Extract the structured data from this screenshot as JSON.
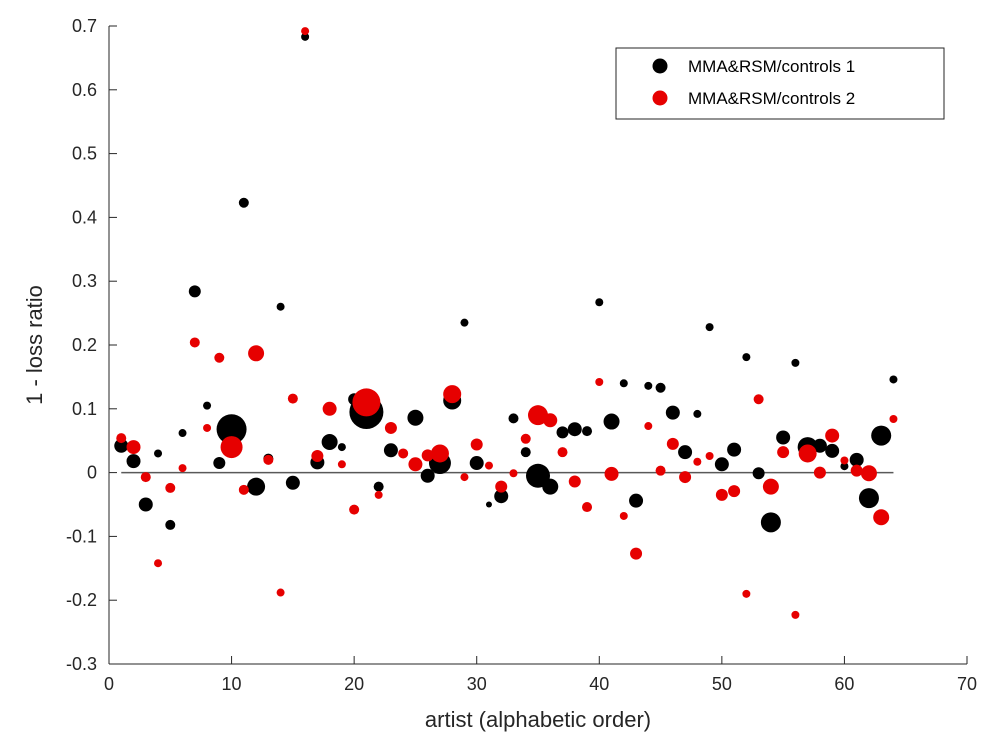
{
  "chart_data": {
    "type": "scatter",
    "xlabel": "artist (alphabetic order)",
    "ylabel": "1 - loss ratio",
    "xlim": [
      0,
      70
    ],
    "ylim": [
      -0.3,
      0.7
    ],
    "xticks": [
      0,
      10,
      20,
      30,
      40,
      50,
      60,
      70
    ],
    "yticks": [
      -0.3,
      -0.2,
      -0.1,
      0,
      0.1,
      0.2,
      0.3,
      0.4,
      0.5,
      0.6,
      0.7
    ],
    "reference_line": {
      "y": 0,
      "x_range": [
        1,
        64
      ],
      "color": "#595959"
    },
    "legend_position": "top-right",
    "grid": false,
    "colors": {
      "series1": "#000000",
      "series2": "#e60000",
      "axis": "#262626"
    },
    "series": [
      {
        "name": "MMA&RSM/controls 1",
        "color": "#000000",
        "x": [
          1,
          2,
          3,
          4,
          5,
          6,
          7,
          8,
          9,
          10,
          11,
          12,
          13,
          14,
          15,
          16,
          17,
          18,
          19,
          20,
          21,
          22,
          23,
          24,
          25,
          26,
          27,
          28,
          29,
          30,
          31,
          32,
          33,
          34,
          35,
          36,
          37,
          38,
          39,
          40,
          41,
          42,
          43,
          44,
          45,
          46,
          47,
          48,
          49,
          50,
          51,
          52,
          53,
          54,
          55,
          56,
          57,
          58,
          59,
          60,
          61,
          62,
          63,
          64
        ],
        "y": [
          0.042,
          0.018,
          -0.05,
          0.03,
          -0.082,
          0.062,
          0.284,
          0.105,
          0.015,
          0.068,
          0.423,
          -0.022,
          0.022,
          0.26,
          -0.016,
          0.683,
          0.016,
          0.048,
          0.04,
          0.115,
          0.095,
          -0.022,
          0.035,
          0.03,
          0.086,
          -0.005,
          0.015,
          0.113,
          0.235,
          0.015,
          -0.05,
          -0.037,
          0.085,
          0.032,
          -0.005,
          -0.022,
          0.063,
          0.068,
          0.065,
          0.267,
          0.08,
          0.14,
          -0.044,
          0.136,
          0.133,
          0.094,
          0.032,
          0.092,
          0.228,
          0.013,
          0.036,
          0.181,
          -0.001,
          -0.078,
          0.055,
          0.172,
          0.04,
          0.042,
          0.034,
          0.01,
          0.02,
          -0.04,
          0.058,
          0.146
        ],
        "size": [
          7,
          7,
          7,
          4,
          5,
          4,
          6,
          4,
          6,
          15,
          5,
          9,
          5,
          4,
          7,
          4,
          7,
          8,
          4,
          6,
          17,
          5,
          7,
          4,
          8,
          7,
          11,
          9,
          4,
          7,
          3,
          7,
          5,
          5,
          12,
          8,
          6,
          7,
          5,
          4,
          8,
          4,
          7,
          4,
          5,
          7,
          7,
          4,
          4,
          7,
          7,
          4,
          6,
          10,
          7,
          4,
          10,
          7,
          7,
          4,
          7,
          10,
          10,
          4
        ]
      },
      {
        "name": "MMA&RSM/controls 2",
        "color": "#e60000",
        "x": [
          1,
          2,
          3,
          4,
          5,
          6,
          7,
          8,
          9,
          10,
          11,
          12,
          13,
          14,
          15,
          16,
          17,
          18,
          19,
          20,
          21,
          22,
          23,
          24,
          25,
          26,
          27,
          28,
          29,
          30,
          31,
          32,
          33,
          34,
          35,
          36,
          37,
          38,
          39,
          40,
          41,
          42,
          43,
          44,
          45,
          46,
          47,
          48,
          49,
          50,
          51,
          52,
          53,
          54,
          55,
          56,
          57,
          58,
          59,
          60,
          61,
          62,
          63,
          64
        ],
        "y": [
          0.054,
          0.04,
          -0.007,
          -0.142,
          -0.024,
          0.007,
          0.204,
          0.07,
          0.18,
          0.04,
          -0.027,
          0.187,
          0.02,
          -0.188,
          0.116,
          0.692,
          0.026,
          0.1,
          0.013,
          -0.058,
          0.11,
          -0.035,
          0.07,
          0.03,
          0.013,
          0.027,
          0.03,
          0.123,
          -0.007,
          0.044,
          0.011,
          -0.022,
          -0.001,
          0.053,
          0.09,
          0.082,
          0.032,
          -0.014,
          -0.054,
          0.142,
          -0.002,
          -0.068,
          -0.127,
          0.073,
          0.003,
          0.045,
          -0.007,
          0.017,
          0.026,
          -0.035,
          -0.029,
          -0.19,
          0.115,
          -0.022,
          0.032,
          -0.223,
          0.03,
          0.0,
          0.058,
          0.019,
          0.003,
          -0.001,
          -0.07,
          0.084
        ],
        "size": [
          5,
          7,
          5,
          4,
          5,
          4,
          5,
          4,
          5,
          11,
          5,
          8,
          5,
          4,
          5,
          4,
          6,
          7,
          4,
          5,
          14,
          4,
          6,
          5,
          7,
          6,
          9,
          9,
          4,
          6,
          4,
          6,
          4,
          5,
          10,
          7,
          5,
          6,
          5,
          4,
          7,
          4,
          6,
          4,
          5,
          6,
          6,
          4,
          4,
          6,
          6,
          4,
          5,
          8,
          6,
          4,
          9,
          6,
          7,
          4,
          6,
          8,
          8,
          4
        ]
      }
    ]
  }
}
